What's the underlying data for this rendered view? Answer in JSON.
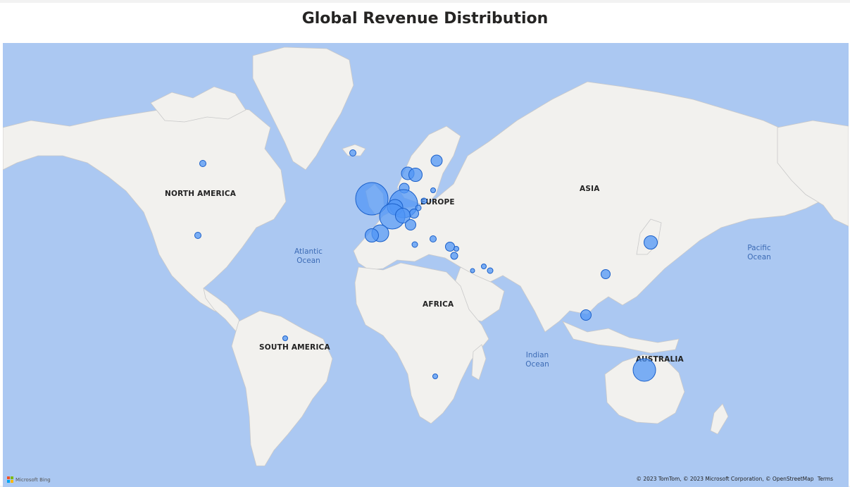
{
  "title": "Global Revenue Distribution",
  "continent_labels": [
    {
      "id": "north-america",
      "text": "NORTH AMERICA"
    },
    {
      "id": "south-america",
      "text": "SOUTH AMERICA"
    },
    {
      "id": "europe",
      "text": "EUROPE"
    },
    {
      "id": "africa",
      "text": "AFRICA"
    },
    {
      "id": "asia",
      "text": "ASIA"
    },
    {
      "id": "australia",
      "text": "AUSTRALIA"
    }
  ],
  "ocean_labels": [
    {
      "id": "atlantic",
      "line1": "Atlantic",
      "line2": "Ocean"
    },
    {
      "id": "indian",
      "line1": "Indian",
      "line2": "Ocean"
    },
    {
      "id": "pacific",
      "line1": "Pacific",
      "line2": "Ocean"
    }
  ],
  "footer": {
    "bing_text": "Microsoft Bing",
    "copyright": "© 2023 TomTom, © 2023 Microsoft Corporation, © OpenStreetMap",
    "terms": "Terms"
  },
  "colors": {
    "ocean": "#abc8f2",
    "land": "#f2f1ee",
    "bubble_fill": "#5096f5",
    "bubble_stroke": "#1a5fc9"
  }
}
